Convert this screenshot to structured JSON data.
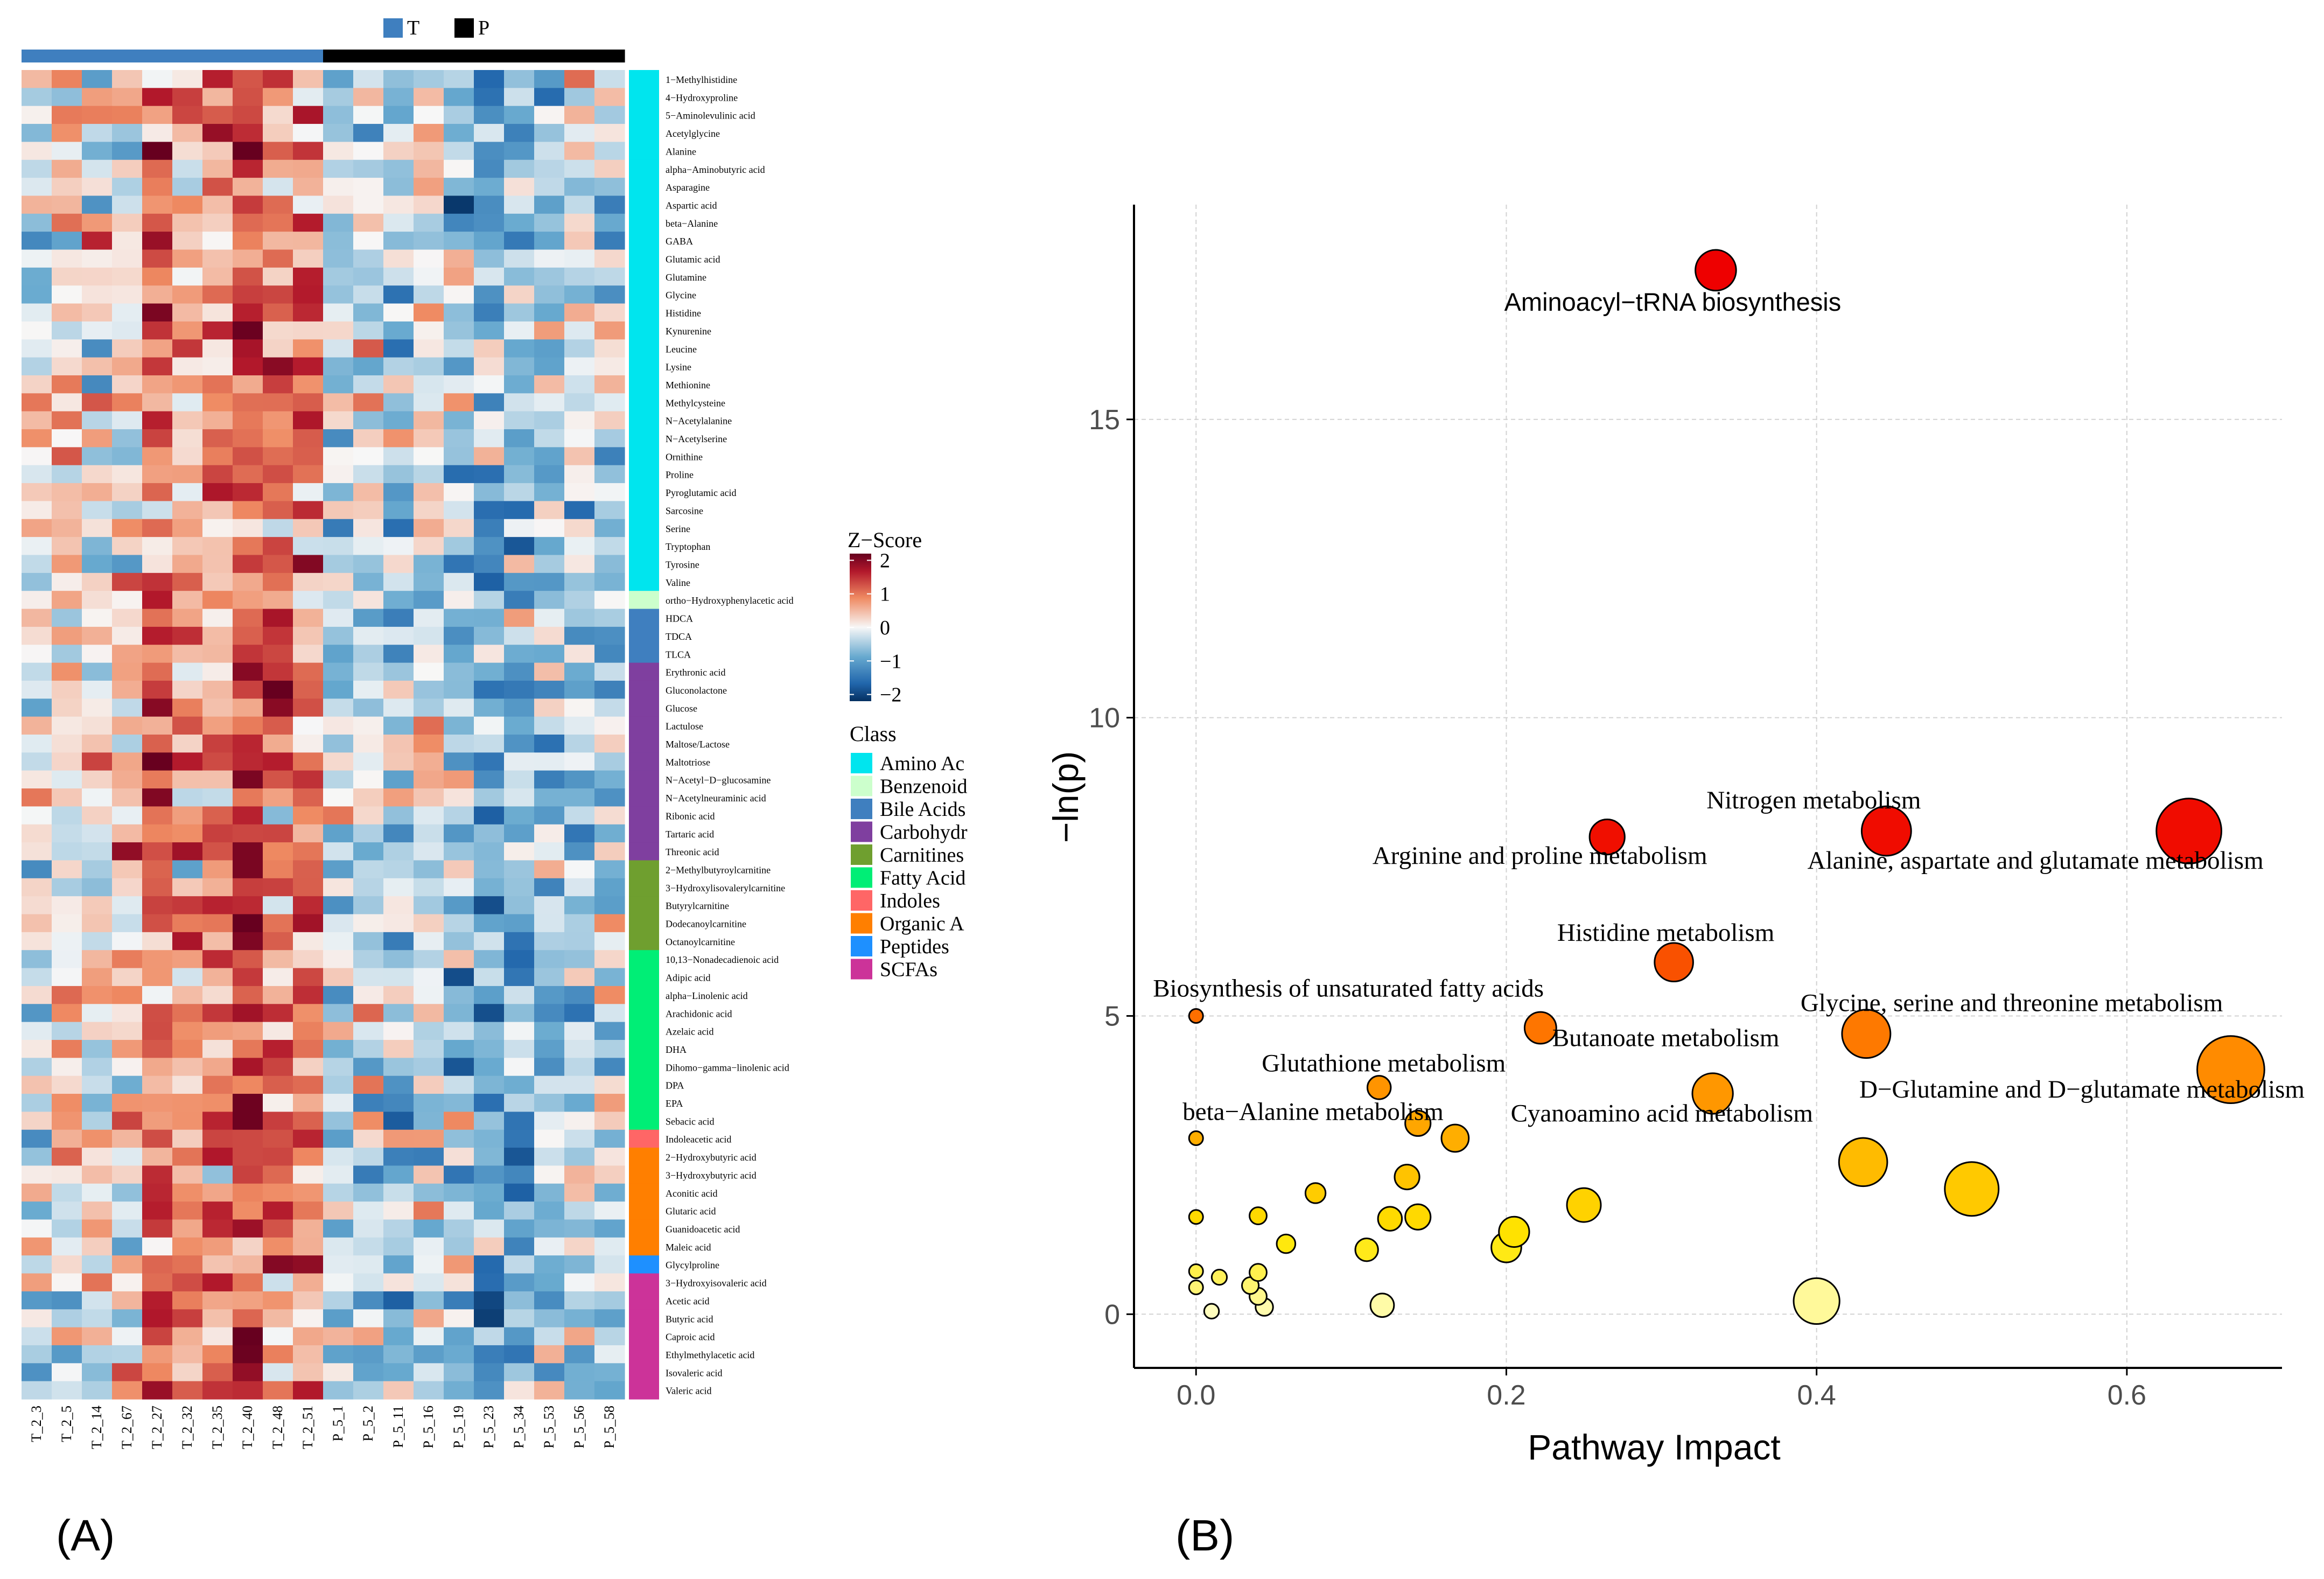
{
  "panel_labels": {
    "a": "(A)",
    "b": "(B)"
  },
  "chart_data": [
    {
      "type": "heatmap",
      "id": "heatmap",
      "top_legend": [
        {
          "label": "T",
          "color": "#3f7fbf"
        },
        {
          "label": "P",
          "color": "#000000"
        }
      ],
      "samples": [
        "T_2_3",
        "T_2_5",
        "T_2_14",
        "T_2_67",
        "T_2_27",
        "T_2_32",
        "T_2_35",
        "T_2_40",
        "T_2_48",
        "T_2_51",
        "P_5_1",
        "P_5_2",
        "P_5_11",
        "P_5_16",
        "P_5_19",
        "P_5_23",
        "P_5_34",
        "P_5_53",
        "P_5_56",
        "P_5_58"
      ],
      "sample_groups": [
        "T",
        "T",
        "T",
        "T",
        "T",
        "T",
        "T",
        "T",
        "T",
        "T",
        "P",
        "P",
        "P",
        "P",
        "P",
        "P",
        "P",
        "P",
        "P",
        "P"
      ],
      "class_colors": {
        "Amino Acids": "#00e5ee",
        "Benzenoids": "#ccffcc",
        "Bile Acids": "#3f7fbf",
        "Carbohydrates": "#7f3f9f",
        "Carnitines": "#6f9f2f",
        "Fatty Acids": "#00ee76",
        "Indoles": "#ff6666",
        "Organic Acids": "#ff7f00",
        "Peptides": "#1e90ff",
        "SCFAs": "#cc3399"
      },
      "rows": [
        {
          "name": "1−Methylhistidine",
          "class": "Amino Acids"
        },
        {
          "name": "4−Hydroxyproline",
          "class": "Amino Acids"
        },
        {
          "name": "5−Aminolevulinic acid",
          "class": "Amino Acids"
        },
        {
          "name": "Acetylglycine",
          "class": "Amino Acids"
        },
        {
          "name": "Alanine",
          "class": "Amino Acids"
        },
        {
          "name": "alpha−Aminobutyric acid",
          "class": "Amino Acids"
        },
        {
          "name": "Asparagine",
          "class": "Amino Acids"
        },
        {
          "name": "Aspartic acid",
          "class": "Amino Acids"
        },
        {
          "name": "beta−Alanine",
          "class": "Amino Acids"
        },
        {
          "name": "GABA",
          "class": "Amino Acids"
        },
        {
          "name": "Glutamic acid",
          "class": "Amino Acids"
        },
        {
          "name": "Glutamine",
          "class": "Amino Acids"
        },
        {
          "name": "Glycine",
          "class": "Amino Acids"
        },
        {
          "name": "Histidine",
          "class": "Amino Acids"
        },
        {
          "name": "Kynurenine",
          "class": "Amino Acids"
        },
        {
          "name": "Leucine",
          "class": "Amino Acids"
        },
        {
          "name": "Lysine",
          "class": "Amino Acids"
        },
        {
          "name": "Methionine",
          "class": "Amino Acids"
        },
        {
          "name": "Methylcysteine",
          "class": "Amino Acids"
        },
        {
          "name": "N−Acetylalanine",
          "class": "Amino Acids"
        },
        {
          "name": "N−Acetylserine",
          "class": "Amino Acids"
        },
        {
          "name": "Ornithine",
          "class": "Amino Acids"
        },
        {
          "name": "Proline",
          "class": "Amino Acids"
        },
        {
          "name": "Pyroglutamic acid",
          "class": "Amino Acids"
        },
        {
          "name": "Sarcosine",
          "class": "Amino Acids"
        },
        {
          "name": "Serine",
          "class": "Amino Acids"
        },
        {
          "name": "Tryptophan",
          "class": "Amino Acids"
        },
        {
          "name": "Tyrosine",
          "class": "Amino Acids"
        },
        {
          "name": "Valine",
          "class": "Amino Acids"
        },
        {
          "name": "ortho−Hydroxyphenylacetic acid",
          "class": "Benzenoids"
        },
        {
          "name": "HDCA",
          "class": "Bile Acids"
        },
        {
          "name": "TDCA",
          "class": "Bile Acids"
        },
        {
          "name": "TLCA",
          "class": "Bile Acids"
        },
        {
          "name": "Erythronic acid",
          "class": "Carbohydrates"
        },
        {
          "name": "Gluconolactone",
          "class": "Carbohydrates"
        },
        {
          "name": "Glucose",
          "class": "Carbohydrates"
        },
        {
          "name": "Lactulose",
          "class": "Carbohydrates"
        },
        {
          "name": "Maltose/Lactose",
          "class": "Carbohydrates"
        },
        {
          "name": "Maltotriose",
          "class": "Carbohydrates"
        },
        {
          "name": "N−Acetyl−D−glucosamine",
          "class": "Carbohydrates"
        },
        {
          "name": "N−Acetylneuraminic acid",
          "class": "Carbohydrates"
        },
        {
          "name": "Ribonic acid",
          "class": "Carbohydrates"
        },
        {
          "name": "Tartaric acid",
          "class": "Carbohydrates"
        },
        {
          "name": "Threonic acid",
          "class": "Carbohydrates"
        },
        {
          "name": "2−Methylbutyroylcarnitine",
          "class": "Carnitines"
        },
        {
          "name": "3−Hydroxylisovalerylcarnitine",
          "class": "Carnitines"
        },
        {
          "name": "Butyrylcarnitine",
          "class": "Carnitines"
        },
        {
          "name": "Dodecanoylcarnitine",
          "class": "Carnitines"
        },
        {
          "name": "Octanoylcarnitine",
          "class": "Carnitines"
        },
        {
          "name": "10,13−Nonadecadienoic acid",
          "class": "Fatty Acids"
        },
        {
          "name": "Adipic acid",
          "class": "Fatty Acids"
        },
        {
          "name": "alpha−Linolenic acid",
          "class": "Fatty Acids"
        },
        {
          "name": "Arachidonic acid",
          "class": "Fatty Acids"
        },
        {
          "name": "Azelaic acid",
          "class": "Fatty Acids"
        },
        {
          "name": "DHA",
          "class": "Fatty Acids"
        },
        {
          "name": "Dihomo−gamma−linolenic acid",
          "class": "Fatty Acids"
        },
        {
          "name": "DPA",
          "class": "Fatty Acids"
        },
        {
          "name": "EPA",
          "class": "Fatty Acids"
        },
        {
          "name": "Sebacic acid",
          "class": "Fatty Acids"
        },
        {
          "name": "Indoleacetic acid",
          "class": "Indoles"
        },
        {
          "name": "2−Hydroxybutyric acid",
          "class": "Organic Acids"
        },
        {
          "name": "3−Hydroxybutyric acid",
          "class": "Organic Acids"
        },
        {
          "name": "Aconitic acid",
          "class": "Organic Acids"
        },
        {
          "name": "Glutaric acid",
          "class": "Organic Acids"
        },
        {
          "name": "Guanidoacetic acid",
          "class": "Organic Acids"
        },
        {
          "name": "Maleic acid",
          "class": "Organic Acids"
        },
        {
          "name": "Glycylproline",
          "class": "Peptides"
        },
        {
          "name": "3−Hydroxyisovaleric acid",
          "class": "SCFAs"
        },
        {
          "name": "Acetic acid",
          "class": "SCFAs"
        },
        {
          "name": "Butyric acid",
          "class": "SCFAs"
        },
        {
          "name": "Caproic acid",
          "class": "SCFAs"
        },
        {
          "name": "Ethylmethylacetic acid",
          "class": "SCFAs"
        },
        {
          "name": "Isovaleric acid",
          "class": "SCFAs"
        },
        {
          "name": "Valeric acid",
          "class": "SCFAs"
        }
      ],
      "zscore_legend": {
        "title": "Z−Score",
        "ticks": [
          2,
          1,
          0,
          -1,
          -2
        ],
        "tick_labels": [
          "2",
          "1",
          "0",
          "−1",
          "−2"
        ],
        "range": [
          -2.2,
          2.2
        ]
      },
      "class_legend": {
        "title": "Class",
        "entries": [
          {
            "label": "Amino Ac",
            "class": "Amino Acids"
          },
          {
            "label": "Benzenoid",
            "class": "Benzenoids"
          },
          {
            "label": "Bile Acids",
            "class": "Bile Acids"
          },
          {
            "label": "Carbohydr",
            "class": "Carbohydrates"
          },
          {
            "label": "Carnitines",
            "class": "Carnitines"
          },
          {
            "label": "Fatty Acid",
            "class": "Fatty Acids"
          },
          {
            "label": "Indoles",
            "class": "Indoles"
          },
          {
            "label": "Organic A",
            "class": "Organic Acids"
          },
          {
            "label": "Peptides",
            "class": "Peptides"
          },
          {
            "label": "SCFAs",
            "class": "SCFAs"
          }
        ]
      },
      "values_note": "cell z-scores estimated from the colour pattern: T samples mostly positive (red), P samples mostly negative (blue)",
      "values_seed": 1337
    },
    {
      "type": "scatter",
      "id": "pathway-bubble",
      "xlabel": "Pathway Impact",
      "ylabel": "−ln(p)",
      "xlim": [
        -0.04,
        0.7
      ],
      "ylim": [
        -0.9,
        18.6
      ],
      "xticks": [
        0.0,
        0.2,
        0.4,
        0.6
      ],
      "xtick_labels": [
        "0.0",
        "0.2",
        "0.4",
        "0.6"
      ],
      "yticks": [
        0,
        5,
        10,
        15
      ],
      "ytick_labels": [
        "0",
        "5",
        "10",
        "15"
      ],
      "grid": true,
      "points": [
        {
          "x": 0.335,
          "y": 17.5,
          "label": "Aminoacyl−tRNA biosynthesis",
          "font": "sans"
        },
        {
          "x": 0.265,
          "y": 8.0,
          "label": "Arginine and proline metabolism",
          "font": "serif"
        },
        {
          "x": 0.445,
          "y": 8.1,
          "label": "Nitrogen metabolism",
          "font": "serif"
        },
        {
          "x": 0.64,
          "y": 8.1,
          "label": "Alanine, aspartate and glutamate metabolism",
          "font": "serif"
        },
        {
          "x": 0.308,
          "y": 5.9,
          "label": "Histidine metabolism",
          "font": "serif"
        },
        {
          "x": 0.0,
          "y": 5.0,
          "label": "Biosynthesis of unsaturated fatty acids",
          "font": "serif"
        },
        {
          "x": 0.222,
          "y": 4.8,
          "label": "Butanoate metabolism",
          "font": "serif"
        },
        {
          "x": 0.432,
          "y": 4.7,
          "label": "Glycine, serine and threonine metabolism",
          "font": "serif"
        },
        {
          "x": 0.667,
          "y": 4.1,
          "label": "D−Glutamine and D−glutamate metabolism",
          "font": "serif"
        },
        {
          "x": 0.118,
          "y": 3.8,
          "label": "Glutathione metabolism",
          "font": "serif"
        },
        {
          "x": 0.333,
          "y": 3.7,
          "label": "Cyanoamino acid metabolism",
          "font": "serif"
        },
        {
          "x": 0.0,
          "y": 2.95,
          "label": "beta−Alanine metabolism",
          "font": "serif"
        },
        {
          "x": 0.143,
          "y": 3.2,
          "label": ""
        },
        {
          "x": 0.167,
          "y": 2.95,
          "label": ""
        },
        {
          "x": 0.43,
          "y": 2.55,
          "label": ""
        },
        {
          "x": 0.5,
          "y": 2.1,
          "label": ""
        },
        {
          "x": 0.136,
          "y": 2.3,
          "label": ""
        },
        {
          "x": 0.077,
          "y": 2.03,
          "label": ""
        },
        {
          "x": 0.25,
          "y": 1.83,
          "label": ""
        },
        {
          "x": 0.04,
          "y": 1.65,
          "label": ""
        },
        {
          "x": 0.125,
          "y": 1.6,
          "label": ""
        },
        {
          "x": 0.143,
          "y": 1.63,
          "label": ""
        },
        {
          "x": 0.0,
          "y": 1.63,
          "label": ""
        },
        {
          "x": 0.205,
          "y": 1.38,
          "label": ""
        },
        {
          "x": 0.2,
          "y": 1.12,
          "label": ""
        },
        {
          "x": 0.11,
          "y": 1.08,
          "label": ""
        },
        {
          "x": 0.058,
          "y": 1.18,
          "label": ""
        },
        {
          "x": 0.0,
          "y": 0.72,
          "label": ""
        },
        {
          "x": 0.015,
          "y": 0.62,
          "label": ""
        },
        {
          "x": 0.0,
          "y": 0.45,
          "label": ""
        },
        {
          "x": 0.04,
          "y": 0.7,
          "label": ""
        },
        {
          "x": 0.035,
          "y": 0.48,
          "label": ""
        },
        {
          "x": 0.04,
          "y": 0.3,
          "label": ""
        },
        {
          "x": 0.4,
          "y": 0.22,
          "label": ""
        },
        {
          "x": 0.12,
          "y": 0.15,
          "label": ""
        },
        {
          "x": 0.044,
          "y": 0.12,
          "label": ""
        },
        {
          "x": 0.01,
          "y": 0.05,
          "label": ""
        }
      ]
    }
  ]
}
